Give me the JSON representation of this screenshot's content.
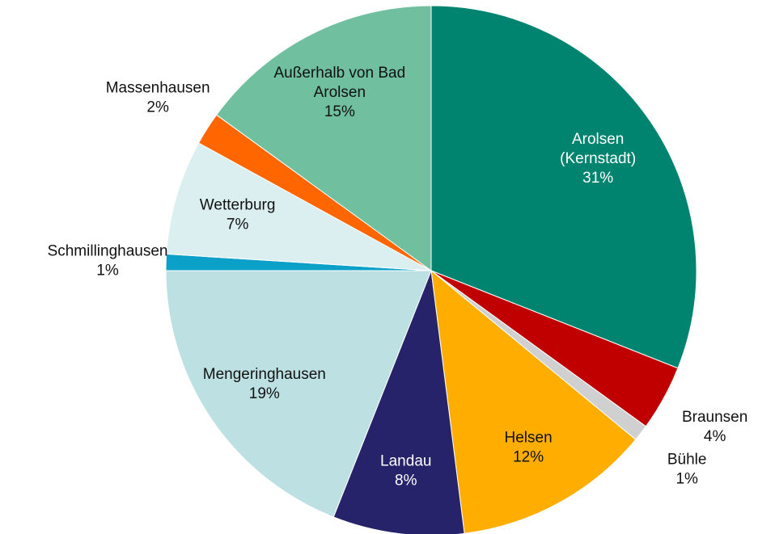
{
  "chart_data": {
    "type": "pie",
    "categories": [
      "Arolsen (Kernstadt)",
      "Braunsen",
      "Bühle",
      "Helsen",
      "Landau",
      "Mengeringhausen",
      "Schmillinghausen",
      "Wetterburg",
      "Massenhausen",
      "Außerhalb von Bad Arolsen"
    ],
    "values": [
      31,
      4,
      1,
      12,
      8,
      19,
      1,
      7,
      2,
      15
    ],
    "value_labels": [
      "31%",
      "4%",
      "1%",
      "12%",
      "8%",
      "19%",
      "1%",
      "7%",
      "2%",
      "15%"
    ],
    "colors": [
      "#00836f",
      "#c00000",
      "#d0d0d0",
      "#ffae00",
      "#27236b",
      "#bde0e2",
      "#0aa0c8",
      "#dbeef0",
      "#ff6600",
      "#70c0a0"
    ]
  }
}
